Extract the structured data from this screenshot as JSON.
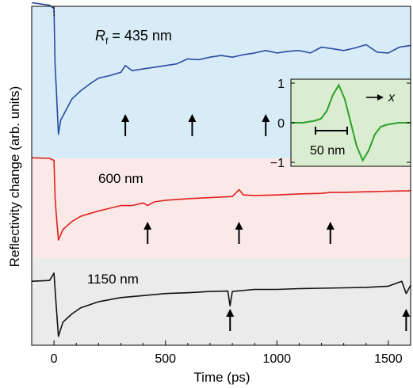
{
  "chart_data": {
    "type": "line",
    "xlabel": "Time (ps)",
    "ylabel": "Reflectivity change (arb. units)",
    "x_ticks": [
      0,
      500,
      1000,
      1500
    ],
    "xlim": [
      -100,
      1600
    ],
    "grid": false,
    "panels": [
      {
        "label_prefix": "R",
        "label_subscript": "f",
        "label_suffix": " = 435 nm",
        "color": "#2b4aa0",
        "background": "#d7ecf7",
        "series": [
          {
            "x": [
              -100,
              -20,
              0,
              5,
              10,
              20,
              30,
              50,
              80,
              120,
              160,
              200,
              250,
              300,
              320,
              350,
              400,
              450,
              500,
              550,
              600,
              650,
              700,
              750,
              800,
              850,
              900,
              950,
              1000,
              1050,
              1100,
              1150,
              1200,
              1250,
              1300,
              1350,
              1400,
              1450,
              1500,
              1550,
              1600
            ],
            "y": [
              0.95,
              0.92,
              0.88,
              0.2,
              -0.05,
              -0.62,
              -0.45,
              -0.35,
              -0.2,
              -0.1,
              -0.02,
              0.05,
              0.08,
              0.12,
              0.2,
              0.14,
              0.16,
              0.18,
              0.2,
              0.22,
              0.28,
              0.27,
              0.3,
              0.32,
              0.3,
              0.33,
              0.35,
              0.38,
              0.35,
              0.37,
              0.38,
              0.35,
              0.42,
              0.4,
              0.38,
              0.41,
              0.45,
              0.36,
              0.35,
              0.42,
              0.44
            ]
          }
        ],
        "arrows_x": [
          320,
          620,
          950
        ]
      },
      {
        "label": "600 nm",
        "color": "#e0201b",
        "background": "#fbe9e8",
        "series": [
          {
            "x": [
              -100,
              -20,
              0,
              5,
              10,
              20,
              40,
              80,
              120,
              160,
              200,
              250,
              300,
              350,
              400,
              420,
              450,
              500,
              600,
              700,
              800,
              830,
              850,
              900,
              1000,
              1100,
              1200,
              1240,
              1300,
              1400,
              1500,
              1600
            ],
            "y": [
              0.95,
              0.94,
              0.9,
              0.2,
              -0.1,
              -0.6,
              -0.4,
              -0.25,
              -0.15,
              -0.1,
              -0.05,
              0.0,
              0.05,
              0.05,
              0.1,
              0.05,
              0.12,
              0.15,
              0.18,
              0.2,
              0.22,
              0.35,
              0.25,
              0.24,
              0.25,
              0.27,
              0.28,
              0.3,
              0.3,
              0.31,
              0.32,
              0.33
            ]
          }
        ],
        "arrows_x": [
          420,
          830,
          1240
        ]
      },
      {
        "label": "1150 nm",
        "color": "#111111",
        "background": "#ebebeb",
        "series": [
          {
            "x": [
              -100,
              -20,
              0,
              5,
              10,
              20,
              40,
              80,
              120,
              200,
              300,
              400,
              500,
              600,
              700,
              780,
              790,
              800,
              900,
              1000,
              1100,
              1200,
              1300,
              1400,
              1500,
              1560,
              1580,
              1600
            ],
            "y": [
              0.5,
              0.52,
              0.7,
              0.3,
              -0.1,
              -0.85,
              -0.5,
              -0.3,
              -0.15,
              0.0,
              0.1,
              0.15,
              0.2,
              0.22,
              0.25,
              0.26,
              -0.1,
              0.25,
              0.3,
              0.3,
              0.32,
              0.33,
              0.34,
              0.35,
              0.38,
              0.5,
              0.2,
              0.4
            ]
          }
        ],
        "arrows_x": [
          790,
          1580
        ]
      }
    ],
    "inset": {
      "background": "#dbedd0",
      "color": "#2ca02c",
      "y_ticks": [
        "1",
        "0",
        "−1"
      ],
      "axis_label": "x",
      "scalebar_label": "50 nm",
      "series": [
        {
          "x": [
            -100,
            -80,
            -60,
            -50,
            -40,
            -30,
            -20,
            -10,
            0,
            10,
            20,
            30,
            40,
            50,
            60,
            80,
            100
          ],
          "y": [
            0,
            0.0,
            0.05,
            0.1,
            0.3,
            0.7,
            0.95,
            0.6,
            0.0,
            -0.6,
            -0.95,
            -0.7,
            -0.3,
            -0.1,
            -0.05,
            0.0,
            0
          ]
        }
      ]
    }
  }
}
